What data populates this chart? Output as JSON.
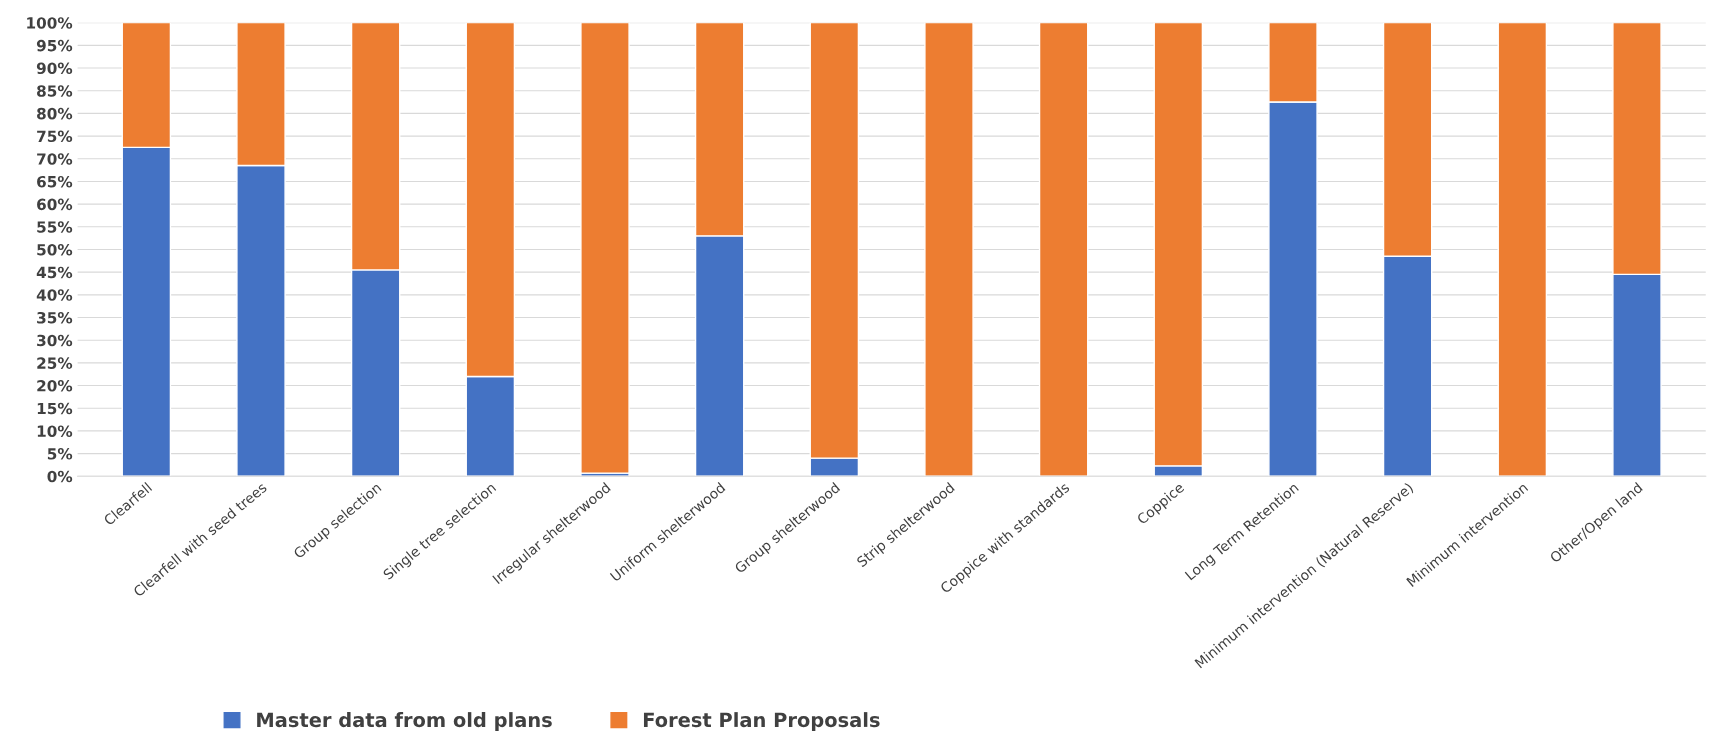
{
  "chart_data": {
    "type": "bar",
    "stacked": true,
    "categories": [
      "Clearfell",
      "Clearfell with seed trees",
      "Group selection",
      "Single tree selection",
      "Irregular shelterwood",
      "Uniform shelterwood",
      "Group shelterwood",
      "Strip shelterwood",
      "Coppice with standards",
      "Coppice",
      "Long Term Retention",
      "Minimum intervention (Natural Reserve)",
      "Minimum intervention",
      "Other/Open land"
    ],
    "series": [
      {
        "name": "Master data from old plans",
        "color": "#4472c4",
        "values": [
          72.5,
          68.5,
          45.5,
          22,
          0.7,
          53,
          4,
          0,
          0,
          2.3,
          82.5,
          48.5,
          0,
          44.5
        ]
      },
      {
        "name": "Forest Plan Proposals",
        "color": "#ed7d31",
        "values": [
          27.5,
          31.5,
          54.5,
          78,
          99.3,
          47,
          96,
          100,
          100,
          97.7,
          17.5,
          51.5,
          100,
          55.5
        ]
      }
    ],
    "ylim": [
      0,
      100
    ],
    "yticks": [
      {
        "value": 0,
        "label": "0%"
      },
      {
        "value": 5,
        "label": "5%"
      },
      {
        "value": 10,
        "label": "10%"
      },
      {
        "value": 15,
        "label": "15%"
      },
      {
        "value": 20,
        "label": "20%"
      },
      {
        "value": 25,
        "label": "25%"
      },
      {
        "value": 30,
        "label": "30%"
      },
      {
        "value": 35,
        "label": "35%"
      },
      {
        "value": 40,
        "label": "40%"
      },
      {
        "value": 45,
        "label": "45%"
      },
      {
        "value": 50,
        "label": "50%"
      },
      {
        "value": 55,
        "label": "55%"
      },
      {
        "value": 60,
        "label": "60%"
      },
      {
        "value": 65,
        "label": "65%"
      },
      {
        "value": 70,
        "label": "70%"
      },
      {
        "value": 75,
        "label": "75%"
      },
      {
        "value": 80,
        "label": "80%"
      },
      {
        "value": 85,
        "label": "85%"
      },
      {
        "value": 90,
        "label": "90%"
      },
      {
        "value": 95,
        "label": "95%"
      },
      {
        "value": 100,
        "label": "100%"
      }
    ],
    "grid": "y",
    "legend": "bottom"
  }
}
